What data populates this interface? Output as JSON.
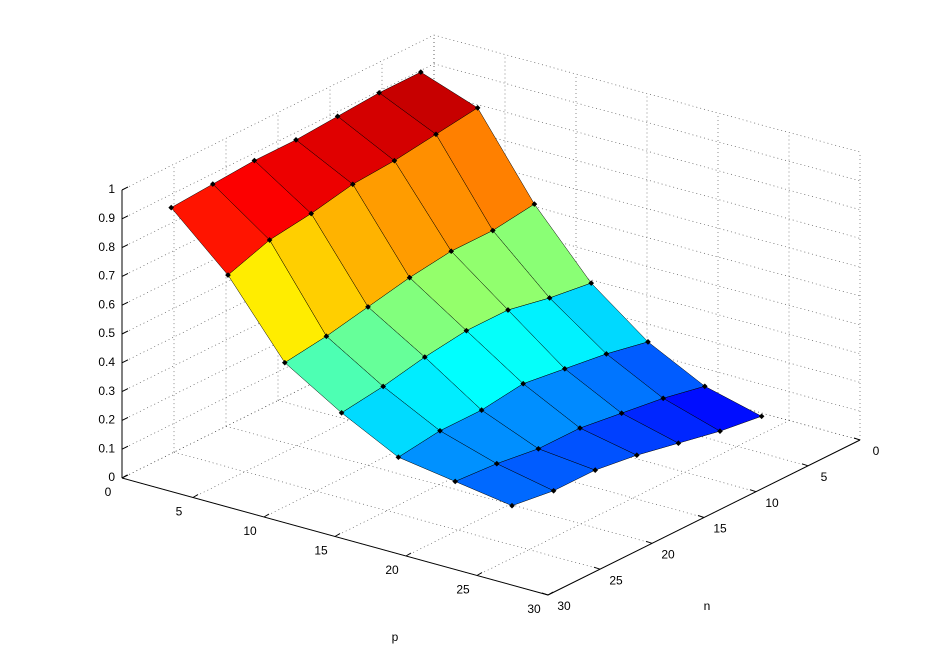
{
  "chart_data": {
    "type": "surface",
    "xlabel": "p",
    "ylabel": "n",
    "x": [
      2,
      6,
      10,
      14,
      18,
      22,
      26
    ],
    "y": [
      4,
      8,
      12,
      16,
      20,
      24,
      28
    ],
    "z": [
      [
        0.97,
        0.9,
        0.62,
        0.4,
        0.25,
        0.15,
        0.1
      ],
      [
        0.97,
        0.88,
        0.6,
        0.42,
        0.28,
        0.18,
        0.12
      ],
      [
        0.96,
        0.86,
        0.6,
        0.45,
        0.3,
        0.2,
        0.15
      ],
      [
        0.95,
        0.85,
        0.58,
        0.45,
        0.32,
        0.22,
        0.18
      ],
      [
        0.95,
        0.82,
        0.55,
        0.43,
        0.3,
        0.22,
        0.2
      ],
      [
        0.94,
        0.8,
        0.52,
        0.4,
        0.3,
        0.24,
        0.2
      ],
      [
        0.93,
        0.75,
        0.5,
        0.38,
        0.28,
        0.25,
        0.22
      ]
    ],
    "colormap": "jet",
    "xlim": [
      0,
      30
    ],
    "xticks": [
      0,
      5,
      10,
      15,
      20,
      25,
      30
    ],
    "ylim": [
      0,
      30
    ],
    "yticks": [
      0,
      5,
      10,
      15,
      20,
      25,
      30
    ],
    "zlim": [
      0,
      1
    ],
    "zticks": [
      0,
      0.1,
      0.2,
      0.3,
      0.4,
      0.5,
      0.6,
      0.7,
      0.8,
      0.9,
      1
    ],
    "grid": true
  }
}
